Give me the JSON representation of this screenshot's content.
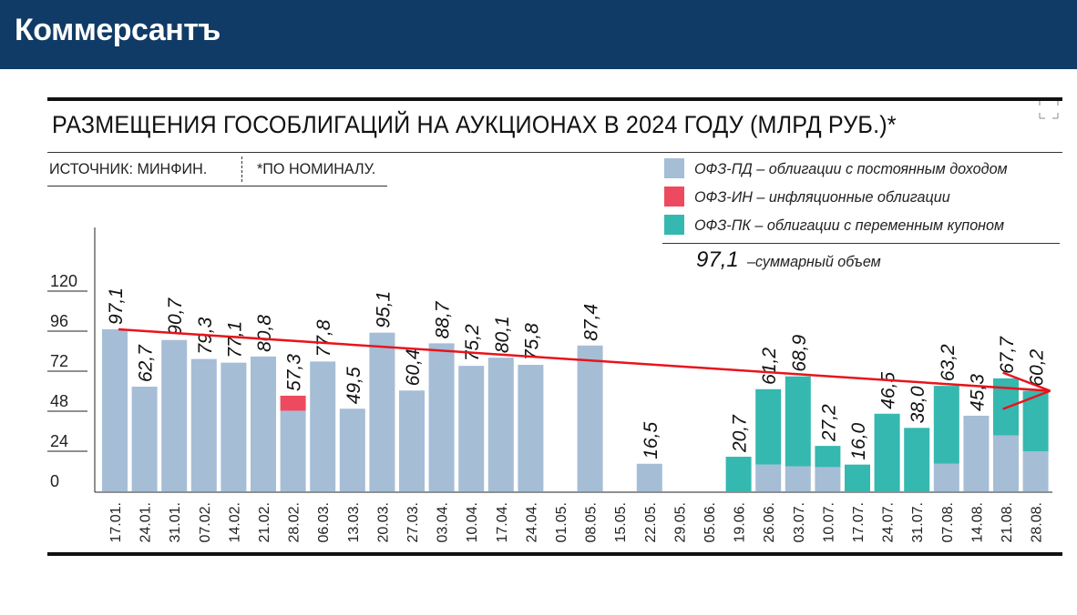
{
  "header": {
    "logo_text": "Коммерсантъ",
    "background": "#0f3b66"
  },
  "title": "РАЗМЕЩЕНИЯ ГОСОБЛИГАЦИЙ НА АУКЦИОНАХ В 2024 ГОДУ (МЛРД РУБ.)*",
  "source": "ИСТОЧНИК: МИНФИН.",
  "note": "*ПО НОМИНАЛУ.",
  "legend": [
    {
      "key": "pd",
      "label": "ОФЗ-ПД – облигации с постоянным доходом",
      "color": "#a6bdd6"
    },
    {
      "key": "in",
      "label": "ОФЗ-ИН – инфляционные облигации",
      "color": "#ee4a5f"
    },
    {
      "key": "pk",
      "label": "ОФЗ-ПК – облигации с переменным купоном",
      "color": "#35b8b0"
    }
  ],
  "volume_note": {
    "value": "97,1",
    "text": "–суммарный объем"
  },
  "chart_data": {
    "type": "bar",
    "stacked": true,
    "ylim": [
      0,
      120
    ],
    "yticks": [
      "0",
      "24",
      "48",
      "72",
      "96",
      "120"
    ],
    "categories": [
      "17.01.",
      "24.01.",
      "31.01.",
      "07.02.",
      "14.02.",
      "21.02.",
      "28.02.",
      "06.03.",
      "13.03.",
      "20.03.",
      "27.03.",
      "03.04.",
      "10.04.",
      "17.04.",
      "24.04.",
      "01.05.",
      "08.05.",
      "15.05.",
      "22.05.",
      "29.05.",
      "05.06.",
      "19.06.",
      "26.06.",
      "03.07.",
      "10.07.",
      "17.07.",
      "24.07.",
      "31.07.",
      "07.08.",
      "14.08.",
      "21.08.",
      "28.08."
    ],
    "series": [
      {
        "name": "ОФЗ-ПД",
        "color": "#a6bdd6",
        "values": [
          97.1,
          62.7,
          90.7,
          79.3,
          77.1,
          80.8,
          48.3,
          77.8,
          49.5,
          95.1,
          60.4,
          88.7,
          75.2,
          80.1,
          75.8,
          0,
          87.4,
          0,
          16.5,
          0,
          0,
          0,
          16.0,
          15.0,
          14.5,
          0,
          0,
          0,
          16.5,
          45.3,
          33.5,
          24.0
        ]
      },
      {
        "name": "ОФЗ-ИН",
        "color": "#ee4a5f",
        "values": [
          0,
          0,
          0,
          0,
          0,
          0,
          9.0,
          0,
          0,
          0,
          0,
          0,
          0,
          0,
          0,
          0,
          0,
          0,
          0,
          0,
          0,
          0,
          0,
          0,
          0,
          0,
          0,
          0,
          0,
          0,
          0,
          0
        ]
      },
      {
        "name": "ОФЗ-ПК",
        "color": "#35b8b0",
        "values": [
          0,
          0,
          0,
          0,
          0,
          0,
          0,
          0,
          0,
          0,
          0,
          0,
          0,
          0,
          0,
          0,
          0,
          0,
          0,
          0,
          0,
          20.7,
          45.2,
          53.9,
          12.7,
          16.0,
          46.5,
          38.0,
          46.7,
          0,
          34.2,
          36.2
        ]
      }
    ],
    "totals": [
      "97,1",
      "62,7",
      "90,7",
      "79,3",
      "77,1",
      "80,8",
      "57,3",
      "77,8",
      "49,5",
      "95,1",
      "60,4",
      "88,7",
      "75,2",
      "80,1",
      "75,8",
      "",
      "87,4",
      "",
      "16,5",
      "",
      "",
      "20,7",
      "61,2",
      "68,9",
      "27,2",
      "16,0",
      "46,5",
      "38,0",
      "63,2",
      "45,3",
      "67,7",
      "60,2"
    ],
    "totals_numeric": [
      97.1,
      62.7,
      90.7,
      79.3,
      77.1,
      80.8,
      57.3,
      77.8,
      49.5,
      95.1,
      60.4,
      88.7,
      75.2,
      80.1,
      75.8,
      0,
      87.4,
      0,
      16.5,
      0,
      0,
      20.7,
      61.2,
      68.9,
      27.2,
      16.0,
      46.5,
      38.0,
      63.2,
      45.3,
      67.7,
      60.2
    ],
    "trend_arrow": {
      "from": {
        "x": "17.01.",
        "y": 97.1
      },
      "to": {
        "x": "28.08.",
        "y": 60.2
      },
      "color": "#e8141b"
    },
    "grid": false
  }
}
